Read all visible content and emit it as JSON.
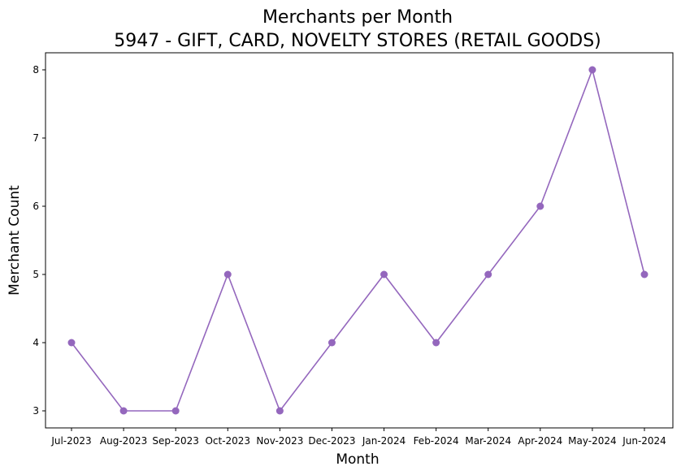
{
  "chart_data": {
    "type": "line",
    "title": "Merchants per Month",
    "subtitle": "5947 - GIFT, CARD, NOVELTY STORES (RETAIL GOODS)",
    "xlabel": "Month",
    "ylabel": "Merchant Count",
    "categories": [
      "Jul-2023",
      "Aug-2023",
      "Sep-2023",
      "Oct-2023",
      "Nov-2023",
      "Dec-2023",
      "Jan-2024",
      "Feb-2024",
      "Mar-2024",
      "Apr-2024",
      "May-2024",
      "Jun-2024"
    ],
    "series": [
      {
        "values": [
          4,
          3,
          3,
          5,
          3,
          4,
          5,
          4,
          5,
          6,
          8,
          5
        ],
        "color": "#9467bd"
      }
    ],
    "yticks": [
      3,
      4,
      5,
      6,
      7,
      8
    ],
    "ylim": [
      2.75,
      8.25
    ],
    "grid": false,
    "legend": "none"
  }
}
